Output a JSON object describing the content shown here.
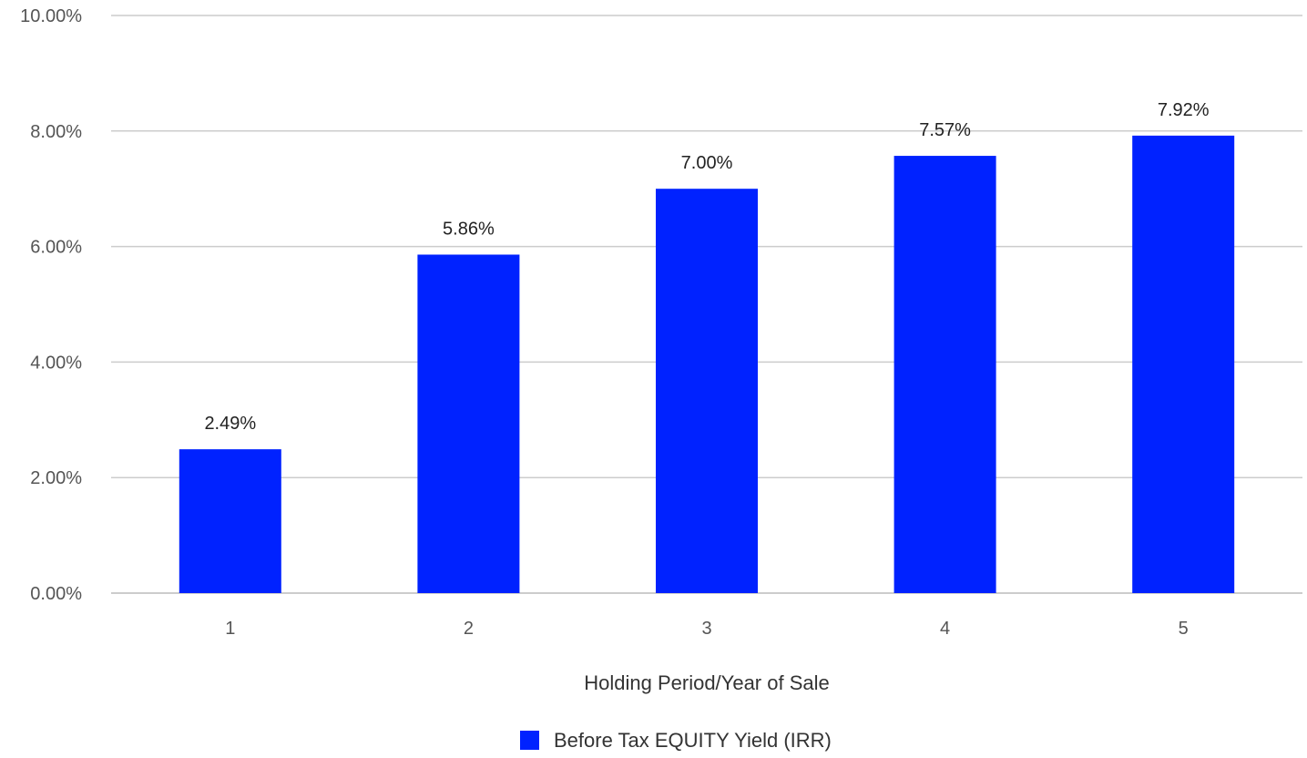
{
  "chart_data": {
    "type": "bar",
    "categories": [
      "1",
      "2",
      "3",
      "4",
      "5"
    ],
    "series": [
      {
        "name": "Before Tax EQUITY Yield (IRR)",
        "values": [
          2.49,
          5.86,
          7.0,
          7.57,
          7.92
        ]
      }
    ],
    "data_labels": [
      "2.49%",
      "5.86%",
      "7.00%",
      "7.57%",
      "7.92%"
    ],
    "y_ticks": [
      "0.00%",
      "2.00%",
      "4.00%",
      "6.00%",
      "8.00%",
      "10.00%"
    ],
    "y_tick_values": [
      0,
      2,
      4,
      6,
      8,
      10
    ],
    "ylim": [
      0,
      10
    ],
    "xlabel": "Holding Period/Year of Sale",
    "ylabel": "",
    "title": "",
    "grid": true,
    "legend_position": "bottom",
    "colors": {
      "bar": "#0022ff",
      "grid": "#cccccc"
    }
  }
}
